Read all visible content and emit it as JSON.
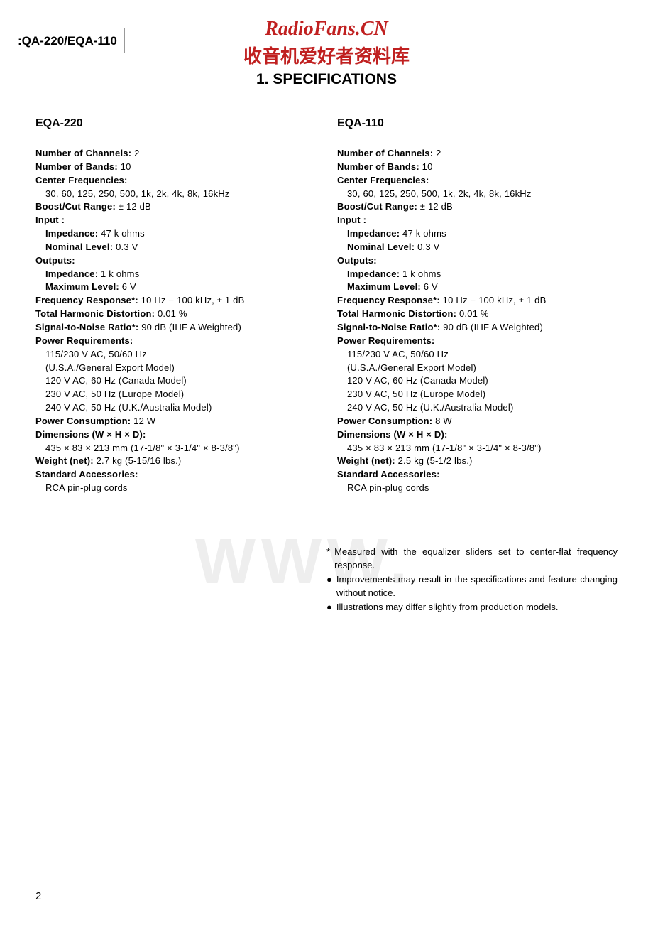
{
  "header": {
    "model_code": ":QA-220/EQA-110",
    "watermark_title": "RadioFans.CN",
    "watermark_subtitle": "收音机爱好者资料库",
    "section_title": "1.  SPECIFICATIONS"
  },
  "columns": [
    {
      "heading": "EQA-220",
      "specs": {
        "channels_label": "Number of Channels:",
        "channels_value": " 2",
        "bands_label": "Number of Bands:",
        "bands_value": " 10",
        "center_freq_label": "Center Frequencies:",
        "center_freq_value": "30, 60, 125, 250, 500, 1k, 2k, 4k, 8k, 16kHz",
        "boost_label": "Boost/Cut Range:",
        "boost_value": "   ± 12  dB",
        "input_label": "Input :",
        "input_imp_label": "Impedance:",
        "input_imp_value": " 47  k  ohms",
        "input_nom_label": "Nominal Level:",
        "input_nom_value": " 0.3  V",
        "outputs_label": "Outputs:",
        "output_imp_label": "Impedance:",
        "output_imp_value": " 1  k  ohms",
        "output_max_label": "Maximum Level:",
        "output_max_value": " 6  V",
        "freq_resp_label": "Frequency Response*:",
        "freq_resp_value": " 10  Hz  −  100  kHz, ± 1  dB",
        "thd_label": "Total Harmonic Distortion:",
        "thd_value": " 0.01 %",
        "snr_label": "Signal-to-Noise Ratio*:",
        "snr_value": " 90  dB  (IHF  A  Weighted)",
        "power_req_label": "Power Requirements:",
        "power_req_lines": [
          "115/230  V  AC, 50/60  Hz",
          "(U.S.A./General  Export  Model)",
          "120  V  AC, 60  Hz   (Canada  Model)",
          "230  V  AC, 50  Hz   (Europe  Model)",
          "240  V  AC, 50  Hz   (U.K./Australia  Model)"
        ],
        "power_cons_label": "Power Consumption:",
        "power_cons_value": " 12  W",
        "dim_label": "Dimensions (W × H × D):",
        "dim_value": "435  ×  83  ×  213  mm   (17-1/8\"  ×  3-1/4\"  ×  8-3/8\")",
        "weight_label": "Weight (net):",
        "weight_value": " 2.7  kg  (5-15/16  lbs.)",
        "acc_label": "Standard Accessories:",
        "acc_value": "RCA  pin-plug  cords"
      }
    },
    {
      "heading": "EQA-110",
      "specs": {
        "channels_label": "Number of Channels:",
        "channels_value": " 2",
        "bands_label": "Number of Bands:",
        "bands_value": " 10",
        "center_freq_label": "Center Frequencies:",
        "center_freq_value": "30, 60, 125, 250, 500, 1k, 2k, 4k, 8k, 16kHz",
        "boost_label": "Boost/Cut Range:",
        "boost_value": "   ± 12  dB",
        "input_label": "Input :",
        "input_imp_label": "Impedance:",
        "input_imp_value": " 47  k  ohms",
        "input_nom_label": "Nominal Level:",
        "input_nom_value": " 0.3  V",
        "outputs_label": "Outputs:",
        "output_imp_label": "Impedance:",
        "output_imp_value": " 1  k  ohms",
        "output_max_label": "Maximum Level:",
        "output_max_value": " 6  V",
        "freq_resp_label": "Frequency Response*:",
        "freq_resp_value": " 10  Hz  −  100  kHz,  ± 1  dB",
        "thd_label": "Total Harmonic Distortion:",
        "thd_value": " 0.01 %",
        "snr_label": "Signal-to-Noise Ratio*:",
        "snr_value": " 90  dB  (IHF  A  Weighted)",
        "power_req_label": "Power Requirements:",
        "power_req_lines": [
          "115/230  V  AC, 50/60  Hz",
          "(U.S.A./General  Export  Model)",
          "120  V  AC, 60  Hz   (Canada  Model)",
          "230  V  AC, 50  Hz   (Europe  Model)",
          "240  V  AC, 50  Hz   (U.K./Australia  Model)"
        ],
        "power_cons_label": "Power Consumption:",
        "power_cons_value": " 8  W",
        "dim_label": "Dimensions (W × H × D):",
        "dim_value": "435  ×  83  ×  213  mm   (17-1/8\"  ×  3-1/4\"  ×  8-3/8\")",
        "weight_label": "Weight (net):",
        "weight_value": " 2.5  kg  (5-1/2  lbs.)",
        "acc_label": "Standard Accessories:",
        "acc_value": "RCA  pin-plug  cords"
      }
    }
  ],
  "footnotes": [
    {
      "bullet": "*",
      "text": "Measured  with  the  equalizer  sliders  set  to  center-flat frequency  response."
    },
    {
      "bullet": "●",
      "text": "Improvements  may  result  in  the  specifications  and feature  changing  without  notice."
    },
    {
      "bullet": "●",
      "text": "Illustrations may differ slightly from production models."
    }
  ],
  "bg_watermark": "WWW.",
  "page_number": "2"
}
